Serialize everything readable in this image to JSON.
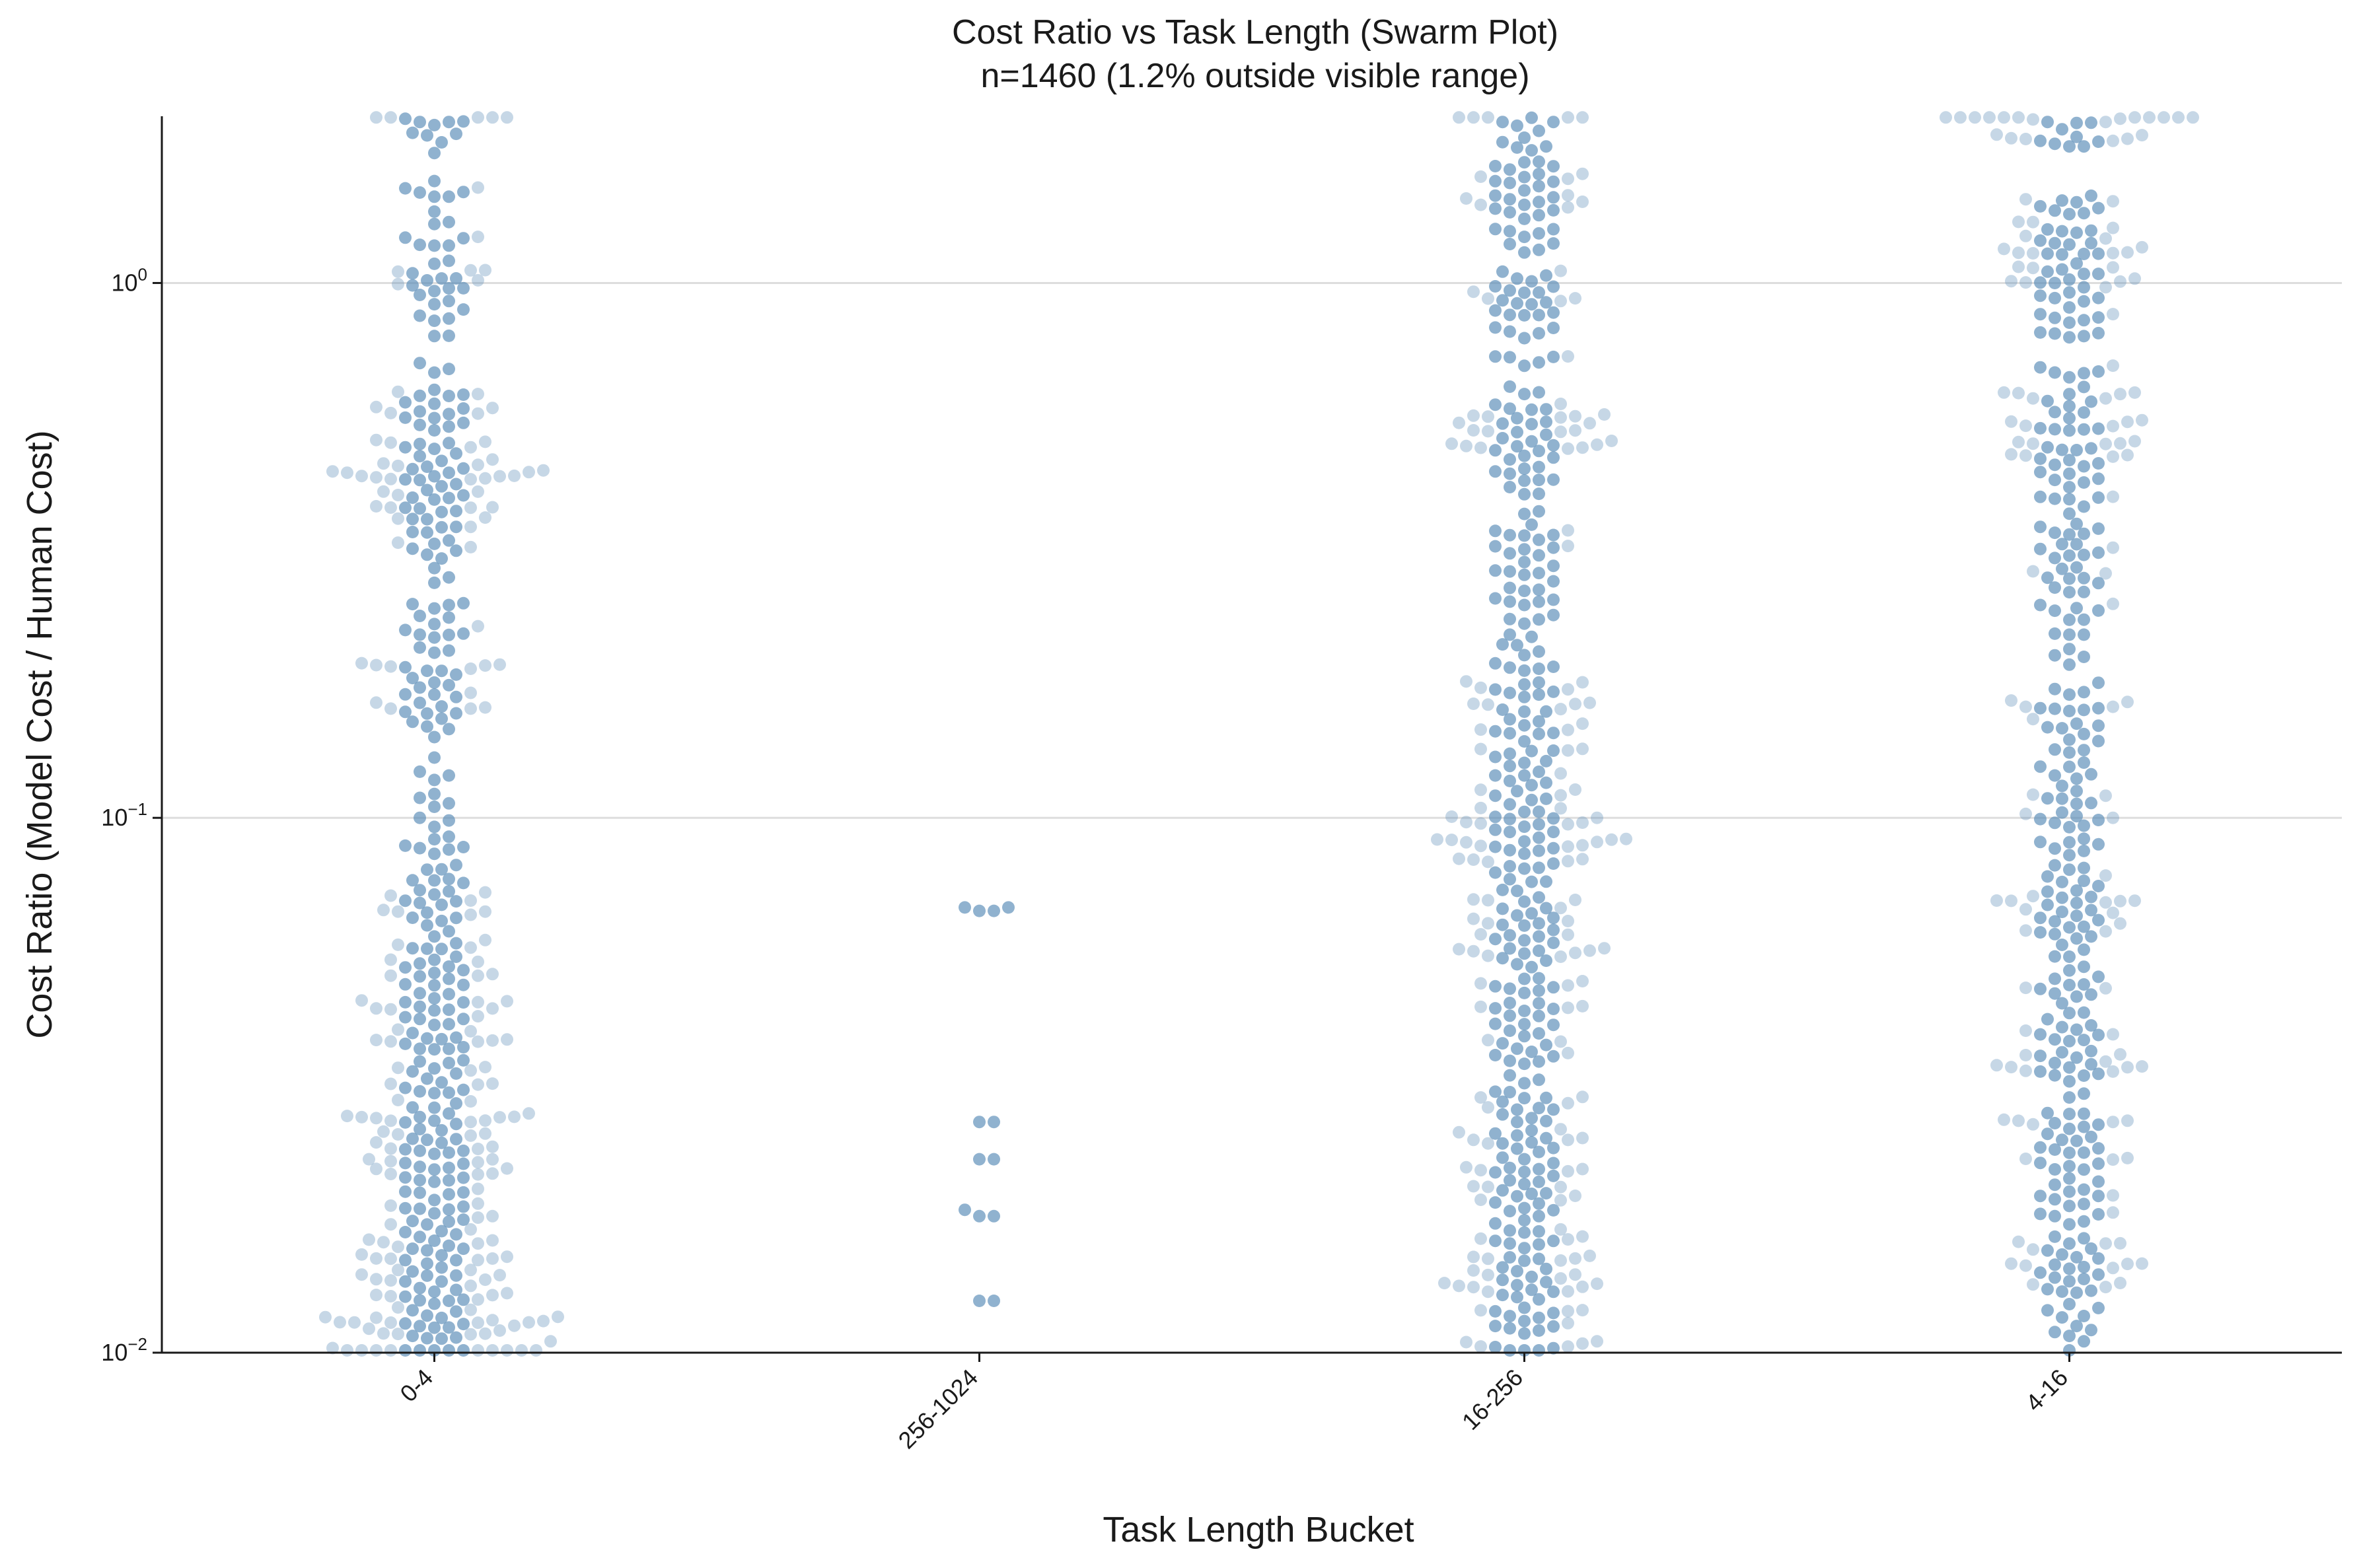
{
  "chart_data": {
    "type": "scatter",
    "subtype": "swarm",
    "title": "Cost Ratio vs Task Length (Swarm Plot)",
    "subtitle": "n=1460 (1.2% outside visible range)",
    "xlabel": "Task Length Bucket",
    "ylabel": "Cost Ratio (Model Cost / Human Cost)",
    "y_scale": "log",
    "ylim": [
      0.01,
      2.05
    ],
    "y_ticks": [
      {
        "value": 0.01,
        "base": "10",
        "exp": "−2"
      },
      {
        "value": 0.1,
        "base": "10",
        "exp": "−1"
      },
      {
        "value": 1,
        "base": "10",
        "exp": "0"
      }
    ],
    "grid": "horizontal at major ticks",
    "legend": "none",
    "point_color": "#5b8db8",
    "categories": [
      "0-4",
      "256-1024",
      "16-256",
      "4-16"
    ],
    "series": [
      {
        "category": "0-4",
        "approx_points": 500,
        "y_values_sample": [
          2.0,
          2.0,
          1.45,
          1.45,
          1.3,
          1.1,
          1.02,
          0.95,
          0.85,
          0.68,
          0.62,
          0.56,
          0.5,
          0.48,
          0.45,
          0.43,
          0.41,
          0.38,
          0.35,
          0.33,
          0.25,
          0.22,
          0.19,
          0.17,
          0.16,
          0.12,
          0.1,
          0.08,
          0.07,
          0.065,
          0.06,
          0.055,
          0.05,
          0.047,
          0.044,
          0.041,
          0.037,
          0.034,
          0.031,
          0.028,
          0.027,
          0.025,
          0.023,
          0.022,
          0.021,
          0.02,
          0.019,
          0.018,
          0.017,
          0.016,
          0.015,
          0.014,
          0.013,
          0.0125,
          0.012,
          0.0115,
          0.011,
          0.0105,
          0.0102
        ]
      },
      {
        "category": "256-1024",
        "approx_points": 13,
        "y_values_sample": [
          0.068,
          0.067,
          0.068,
          0.067,
          0.027,
          0.027,
          0.023,
          0.023,
          0.0185,
          0.018,
          0.018,
          0.0125,
          0.0125
        ]
      },
      {
        "category": "16-256",
        "approx_points": 500,
        "y_values_sample": [
          2.0,
          2.0,
          1.6,
          1.55,
          1.4,
          1.25,
          1.05,
          0.92,
          0.87,
          0.64,
          0.55,
          0.53,
          0.49,
          0.44,
          0.37,
          0.32,
          0.29,
          0.25,
          0.22,
          0.19,
          0.17,
          0.15,
          0.13,
          0.12,
          0.11,
          0.1,
          0.095,
          0.087,
          0.079,
          0.071,
          0.065,
          0.06,
          0.055,
          0.05,
          0.045,
          0.04,
          0.036,
          0.033,
          0.03,
          0.027,
          0.025,
          0.023,
          0.021,
          0.019,
          0.018,
          0.017,
          0.016,
          0.015,
          0.014,
          0.013,
          0.012,
          0.011,
          0.0105
        ]
      },
      {
        "category": "4-16",
        "approx_points": 430,
        "y_values_sample": [
          2.0,
          2.0,
          1.8,
          1.8,
          1.3,
          1.2,
          1.05,
          1.04,
          0.96,
          0.9,
          0.62,
          0.6,
          0.55,
          0.5,
          0.46,
          0.44,
          0.35,
          0.32,
          0.28,
          0.25,
          0.22,
          0.2,
          0.17,
          0.15,
          0.14,
          0.12,
          0.11,
          0.1,
          0.09,
          0.08,
          0.07,
          0.065,
          0.06,
          0.055,
          0.048,
          0.045,
          0.04,
          0.036,
          0.033,
          0.03,
          0.027,
          0.025,
          0.022,
          0.02,
          0.018,
          0.016,
          0.015,
          0.014,
          0.0135,
          0.012,
          0.0105
        ]
      }
    ]
  }
}
